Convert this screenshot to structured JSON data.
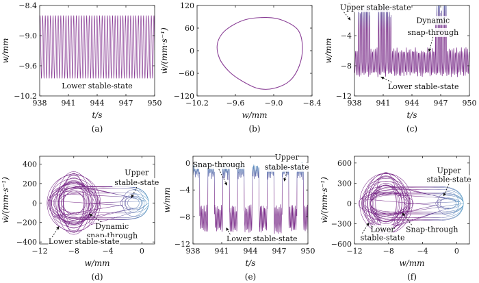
{
  "chart_data": [
    {
      "id": "a",
      "type": "line",
      "caption": "(a)",
      "xlabel": "t/s",
      "ylabel": "w/mm",
      "xlim": [
        938,
        950
      ],
      "ylim": [
        -10.2,
        -8.4
      ],
      "xticks": [
        938,
        941,
        944,
        947,
        950
      ],
      "xtick_labels": [
        "938",
        "941",
        "944",
        "947",
        "950"
      ],
      "yticks": [
        -10.2,
        -9.6,
        -9.0,
        -8.4
      ],
      "ytick_labels": [
        "−10.2",
        "−9.6",
        "−9.0",
        "−8.4"
      ],
      "series": [
        {
          "kind": "periodic",
          "min": -9.85,
          "max": -8.6,
          "period": 0.27
        }
      ],
      "annotations": [
        {
          "text": "Lower stable-state",
          "x": 944,
          "y": -10.05
        }
      ]
    },
    {
      "id": "b",
      "type": "line",
      "caption": "(b)",
      "xlabel": "w/mm",
      "ylabel": "ẇ/(mm·s⁻¹)",
      "xlim": [
        -10.2,
        -8.4
      ],
      "ylim": [
        -120,
        120
      ],
      "xticks": [
        -10.2,
        -9.6,
        -9.0,
        -8.4
      ],
      "xtick_labels": [
        "−10.2",
        "−9.6",
        "−9.0",
        "−8.4"
      ],
      "yticks": [
        -120,
        -60,
        0,
        60,
        120
      ],
      "ytick_labels": [
        "−120",
        "−60",
        "0",
        "60",
        "120"
      ],
      "series": [
        {
          "kind": "closed-orbit",
          "points": [
            [
              -9.1,
              88
            ],
            [
              -8.85,
              80
            ],
            [
              -8.62,
              55
            ],
            [
              -8.55,
              10
            ],
            [
              -8.6,
              -40
            ],
            [
              -8.75,
              -80
            ],
            [
              -9.0,
              -100
            ],
            [
              -9.25,
              -100
            ],
            [
              -9.5,
              -80
            ],
            [
              -9.7,
              -55
            ],
            [
              -9.85,
              -20
            ],
            [
              -9.88,
              20
            ],
            [
              -9.75,
              55
            ],
            [
              -9.45,
              82
            ]
          ]
        }
      ]
    },
    {
      "id": "c",
      "type": "line",
      "caption": "(c)",
      "xlabel": "t/s",
      "ylabel": "w/mm",
      "xlim": [
        938,
        950
      ],
      "ylim": [
        -12,
        0
      ],
      "xticks": [
        938,
        941,
        944,
        947,
        950
      ],
      "xtick_labels": [
        "938",
        "941",
        "944",
        "947",
        "950"
      ],
      "yticks": [
        -12,
        -8,
        -4,
        0
      ],
      "ytick_labels": [
        "−12",
        "−8",
        "−4",
        "0"
      ],
      "series": [
        {
          "kind": "chaotic-time",
          "base_low": -9.5,
          "base_high": -5.5,
          "spike": -0.5,
          "spike_times": [
            938.7,
            939.3,
            940.8,
            941.5,
            946.8,
            947.3
          ]
        }
      ],
      "annotations": [
        {
          "text": "Upper stable-state",
          "x": 940.2,
          "y": -0.6
        },
        {
          "text": "Dynamic",
          "x": 946.2,
          "y": -2.3
        },
        {
          "text": "snap-through",
          "x": 946.2,
          "y": -3.9
        },
        {
          "text": "Lower stable-state",
          "x": 945.2,
          "y": -11.1
        }
      ]
    },
    {
      "id": "d",
      "type": "line",
      "caption": "(d)",
      "xlabel": "w/mm",
      "ylabel": "ẇ/(mm·s⁻¹)",
      "xlim": [
        -12,
        1.5
      ],
      "ylim": [
        -420,
        480
      ],
      "xticks": [
        -12,
        -8,
        -4,
        0
      ],
      "xtick_labels": [
        "−12",
        "−8",
        "−4",
        "0"
      ],
      "yticks": [
        -400,
        -200,
        0,
        200,
        400
      ],
      "ytick_labels": [
        "−400",
        "−200",
        "0",
        "200",
        "400"
      ],
      "series": [
        {
          "kind": "phase-portrait",
          "left_center": -8,
          "right_center": -1
        }
      ],
      "annotations": [
        {
          "text": "Upper",
          "x": -0.6,
          "y": 285
        },
        {
          "text": "stable-state",
          "x": -0.6,
          "y": 185
        },
        {
          "text": "Dynamic",
          "x": -3.5,
          "y": -265
        },
        {
          "text": "snap-through",
          "x": -3.5,
          "y": -360
        },
        {
          "text": "Lower stable-state",
          "x": -6.8,
          "y": -420
        }
      ]
    },
    {
      "id": "e",
      "type": "line",
      "caption": "(e)",
      "xlabel": "t/s",
      "ylabel": "w/mm",
      "xlim": [
        938,
        950
      ],
      "ylim": [
        -12,
        1
      ],
      "xticks": [
        938,
        941,
        944,
        947,
        950
      ],
      "xtick_labels": [
        "938",
        "941",
        "944",
        "947",
        "950"
      ],
      "yticks": [
        -12,
        -8,
        -4,
        0
      ],
      "ytick_labels": [
        "−12",
        "−8",
        "−4",
        "0"
      ],
      "series": [
        {
          "kind": "switching-time"
        }
      ],
      "annotations": [
        {
          "text": "Snap-through",
          "x": 940.7,
          "y": -0.6
        },
        {
          "text": "Upper",
          "x": 947.8,
          "y": 0.5
        },
        {
          "text": "stable-state",
          "x": 947.8,
          "y": -1.0
        },
        {
          "text": "Lower stable-state",
          "x": 945.2,
          "y": -11.6
        }
      ]
    },
    {
      "id": "f",
      "type": "line",
      "caption": "(f)",
      "xlabel": "w/mm",
      "ylabel": "ẇ/(mm·s⁻¹)",
      "xlim": [
        -12,
        1.5
      ],
      "ylim": [
        -600,
        700
      ],
      "xticks": [
        -12,
        -8,
        -4,
        0
      ],
      "xtick_labels": [
        "−12",
        "−8",
        "−4",
        "0"
      ],
      "yticks": [
        -600,
        -300,
        0,
        300,
        600
      ],
      "ytick_labels": [
        "−600",
        "−300",
        "0",
        "300",
        "600"
      ],
      "series": [
        {
          "kind": "phase-portrait",
          "left_center": -8.3,
          "right_center": -1
        }
      ],
      "annotations": [
        {
          "text": "Upper",
          "x": -0.9,
          "y": 450
        },
        {
          "text": "stable-state",
          "x": -0.9,
          "y": 320
        },
        {
          "text": "Lower",
          "x": -8.7,
          "y": -420
        },
        {
          "text": "stable-state",
          "x": -8.7,
          "y": -545
        },
        {
          "text": "Snap-through",
          "x": -2.9,
          "y": -420
        }
      ]
    }
  ],
  "colors": {
    "start": "#7b2e8a",
    "end": "#5da0c8",
    "axis": "#222222",
    "text": "#111111"
  }
}
